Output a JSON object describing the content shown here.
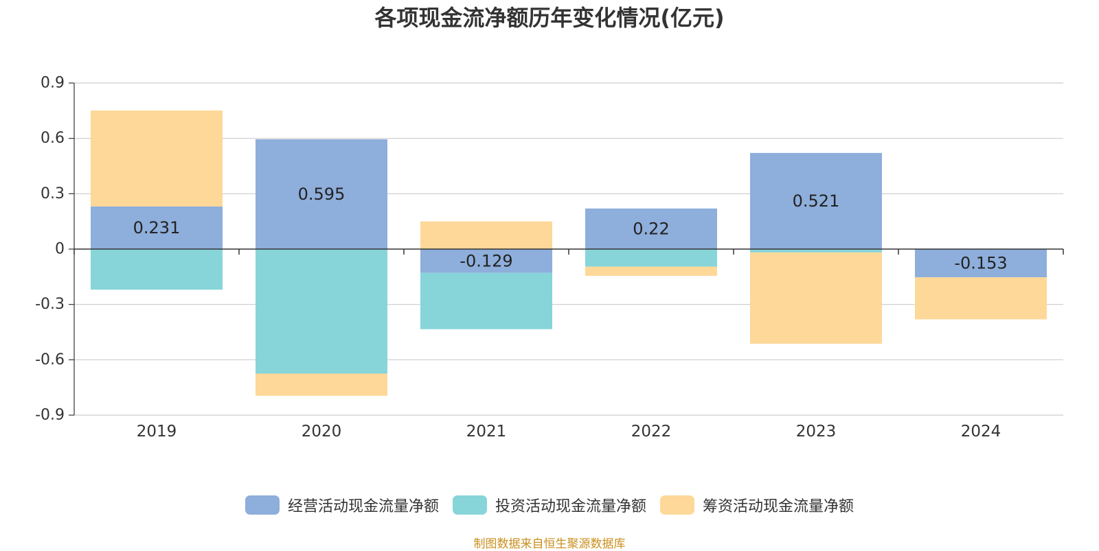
{
  "chart_data": {
    "type": "bar",
    "stacked": true,
    "title": "各项现金流净额历年变化情况(亿元)",
    "categories": [
      "2019",
      "2020",
      "2021",
      "2022",
      "2023",
      "2024"
    ],
    "series": [
      {
        "name": "经营活动现金流量净额",
        "color": "#8eaedb",
        "values": [
          0.231,
          0.595,
          -0.129,
          0.22,
          0.521,
          -0.153
        ],
        "data_labels": [
          "0.231",
          "0.595",
          "-0.129",
          "0.22",
          "0.521",
          "-0.153"
        ]
      },
      {
        "name": "投资活动现金流量净额",
        "color": "#87d5d9",
        "values": [
          -0.22,
          -0.675,
          -0.305,
          -0.095,
          -0.018,
          0
        ]
      },
      {
        "name": "筹资活动现金流量净额",
        "color": "#fdd898",
        "values": [
          0.52,
          -0.12,
          0.15,
          -0.05,
          -0.495,
          -0.228
        ]
      }
    ],
    "ylim": [
      -0.9,
      0.9
    ],
    "yticks": [
      -0.9,
      -0.6,
      -0.3,
      0,
      0.3,
      0.6,
      0.9
    ],
    "ytick_labels": [
      "-0.9",
      "-0.6",
      "-0.3",
      "0",
      "0.3",
      "0.6",
      "0.9"
    ],
    "xlabel": "",
    "ylabel": "",
    "grid": true,
    "legend_position": "bottom"
  },
  "source_note": "制图数据来自恒生聚源数据库"
}
